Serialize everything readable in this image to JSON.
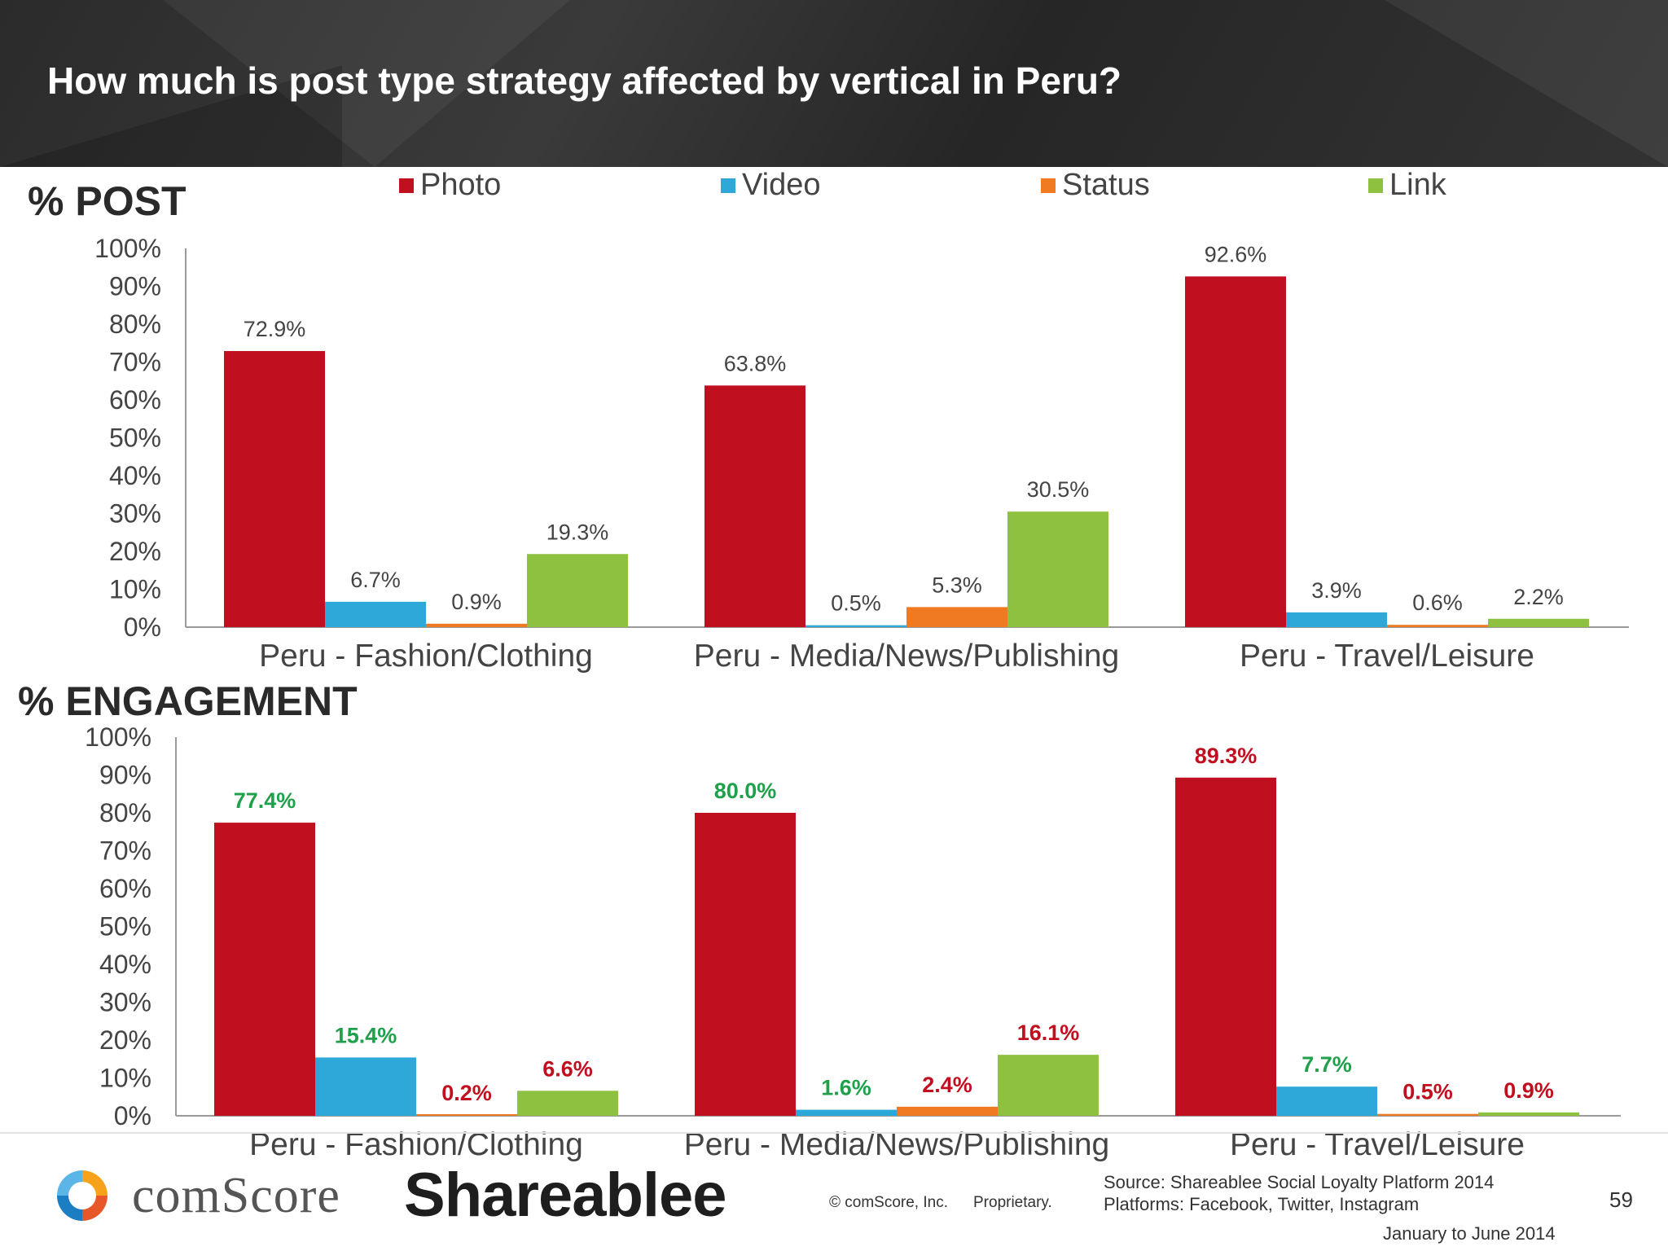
{
  "header": {
    "title": "How much is post type strategy affected by vertical in Peru?"
  },
  "legend": [
    {
      "label": "Photo",
      "color": "#c00f1e"
    },
    {
      "label": "Video",
      "color": "#2ea8d8"
    },
    {
      "label": "Status",
      "color": "#f07a22"
    },
    {
      "label": "Link",
      "color": "#8dc13f"
    }
  ],
  "chart_data": [
    {
      "type": "bar",
      "title": "% POST",
      "categories": [
        "Peru - Fashion/Clothing",
        "Peru - Media/News/Publishing",
        "Peru - Travel/Leisure"
      ],
      "series": [
        {
          "name": "Photo",
          "values": [
            72.9,
            63.8,
            92.6
          ],
          "labels": [
            "72.9%",
            "63.8%",
            "92.6%"
          ],
          "color": "#c00f1e"
        },
        {
          "name": "Video",
          "values": [
            6.7,
            0.5,
            3.9
          ],
          "labels": [
            "6.7%",
            "0.5%",
            "3.9%"
          ],
          "color": "#2ea8d8"
        },
        {
          "name": "Status",
          "values": [
            0.9,
            5.3,
            0.6
          ],
          "labels": [
            "0.9%",
            "5.3%",
            "0.6%"
          ],
          "color": "#f07a22"
        },
        {
          "name": "Link",
          "values": [
            19.3,
            30.5,
            2.2
          ],
          "labels": [
            "19.3%",
            "30.5%",
            "2.2%"
          ],
          "color": "#8dc13f"
        }
      ],
      "ylim": [
        0,
        100
      ],
      "yticks": [
        "0%",
        "10%",
        "20%",
        "30%",
        "40%",
        "50%",
        "60%",
        "70%",
        "80%",
        "90%",
        "100%"
      ],
      "grid": false,
      "legend_position": "top"
    },
    {
      "type": "bar",
      "title": "% ENGAGEMENT",
      "categories": [
        "Peru - Fashion/Clothing",
        "Peru - Media/News/Publishing",
        "Peru - Travel/Leisure"
      ],
      "series": [
        {
          "name": "Photo",
          "values": [
            77.4,
            80.0,
            89.3
          ],
          "labels": [
            "77.4%",
            "80.0%",
            "89.3%"
          ],
          "label_colors": [
            "#1fa04a",
            "#1fa04a",
            "#c00f1e"
          ],
          "color": "#c00f1e"
        },
        {
          "name": "Video",
          "values": [
            15.4,
            1.6,
            7.7
          ],
          "labels": [
            "15.4%",
            "1.6%",
            "7.7%"
          ],
          "label_colors": [
            "#1fa04a",
            "#1fa04a",
            "#1fa04a"
          ],
          "color": "#2ea8d8"
        },
        {
          "name": "Status",
          "values": [
            0.2,
            2.4,
            0.5
          ],
          "labels": [
            "0.2%",
            "2.4%",
            "0.5%"
          ],
          "label_colors": [
            "#c00f1e",
            "#c00f1e",
            "#c00f1e"
          ],
          "color": "#f07a22"
        },
        {
          "name": "Link",
          "values": [
            6.6,
            16.1,
            0.9
          ],
          "labels": [
            "6.6%",
            "16.1%",
            "0.9%"
          ],
          "label_colors": [
            "#c00f1e",
            "#c00f1e",
            "#c00f1e"
          ],
          "color": "#8dc13f"
        }
      ],
      "ylim": [
        0,
        100
      ],
      "yticks": [
        "0%",
        "10%",
        "20%",
        "30%",
        "40%",
        "50%",
        "60%",
        "70%",
        "80%",
        "90%",
        "100%"
      ],
      "grid": false,
      "legend_position": "top"
    }
  ],
  "footer": {
    "comscore_logo": "comScore",
    "shareablee_logo": "Shareablee",
    "copyright": "© comScore, Inc.",
    "proprietary": "Proprietary.",
    "source_line1": "Source: Shareablee Social Loyalty Platform 2014",
    "source_line2": "Platforms: Facebook, Twitter, Instagram",
    "date_range": "January to June 2014",
    "page_number": "59"
  }
}
